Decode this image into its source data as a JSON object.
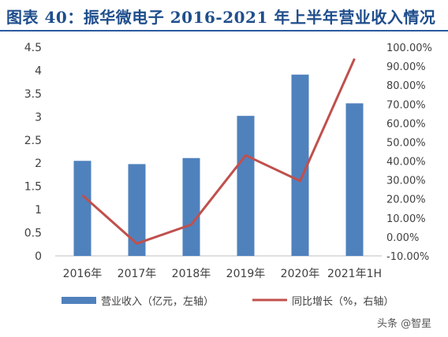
{
  "title": "图表 40：振华微电子 2016-2021 年上半年营业收入情况",
  "watermark": "头条 @智星",
  "colors": {
    "title": "#1f4e8c",
    "bar": "#4f81bd",
    "line": "#c0504d"
  },
  "chart_data": {
    "type": "bar",
    "categories": [
      "2016年",
      "2017年",
      "2018年",
      "2019年",
      "2020年",
      "2021年1H"
    ],
    "series": [
      {
        "name": "营业收入（亿元，左轴）",
        "type": "bar",
        "axis": "left",
        "values": [
          2.05,
          1.98,
          2.11,
          3.02,
          3.91,
          3.29
        ]
      },
      {
        "name": "同比增长（%，右轴）",
        "type": "line",
        "axis": "right",
        "values": [
          22.0,
          -3.5,
          6.5,
          43.0,
          29.5,
          94.0
        ]
      }
    ],
    "y_left": {
      "min": 0,
      "max": 4.5,
      "ticks": [
        "0",
        "0.5",
        "1",
        "1.5",
        "2",
        "2.5",
        "3",
        "3.5",
        "4",
        "4.5"
      ]
    },
    "y_right": {
      "min": -10,
      "max": 100,
      "ticks": [
        "-10.00%",
        "0.00%",
        "10.00%",
        "20.00%",
        "30.00%",
        "40.00%",
        "50.00%",
        "60.00%",
        "70.00%",
        "80.00%",
        "90.00%",
        "100.00%"
      ]
    },
    "grid": false,
    "legend_position": "bottom"
  }
}
